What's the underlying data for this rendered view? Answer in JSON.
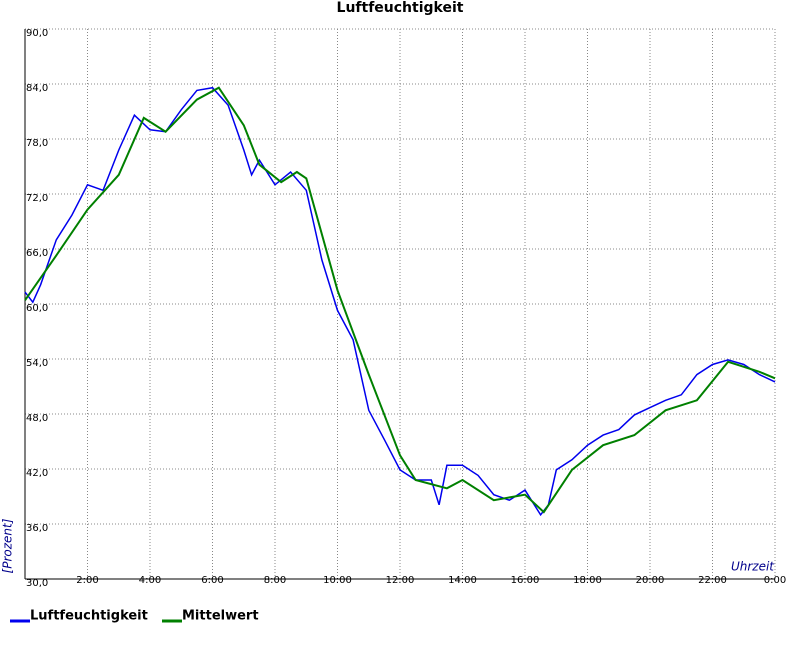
{
  "chart_data": {
    "type": "line",
    "title": "Luftfeuchtigkeit",
    "ylabel": "[Prozent]",
    "xlabel": "Uhrzeit",
    "xlim": [
      0,
      24
    ],
    "ylim": [
      30,
      90
    ],
    "xticks": [
      {
        "value": 2,
        "label": "2:00"
      },
      {
        "value": 4,
        "label": "4:00"
      },
      {
        "value": 6,
        "label": "6:00"
      },
      {
        "value": 8,
        "label": "8:00"
      },
      {
        "value": 10,
        "label": "10:00"
      },
      {
        "value": 12,
        "label": "12:00"
      },
      {
        "value": 14,
        "label": "14:00"
      },
      {
        "value": 16,
        "label": "16:00"
      },
      {
        "value": 18,
        "label": "18:00"
      },
      {
        "value": 20,
        "label": "20:00"
      },
      {
        "value": 22,
        "label": "22:00"
      },
      {
        "value": 24,
        "label": "0:00"
      }
    ],
    "yticks": [
      {
        "value": 30,
        "label": "30,0"
      },
      {
        "value": 36,
        "label": "36,0"
      },
      {
        "value": 42,
        "label": "42,0"
      },
      {
        "value": 48,
        "label": "48,0"
      },
      {
        "value": 54,
        "label": "54,0"
      },
      {
        "value": 60,
        "label": "60,0"
      },
      {
        "value": 66,
        "label": "66,0"
      },
      {
        "value": 72,
        "label": "72,0"
      },
      {
        "value": 78,
        "label": "78,0"
      },
      {
        "value": 84,
        "label": "84,0"
      },
      {
        "value": 90,
        "label": "90,0"
      }
    ],
    "grid": true,
    "series": [
      {
        "name": "Luftfeuchtigkeit",
        "color": "#0000ee",
        "x": [
          0,
          0.25,
          0.5,
          1,
          1.5,
          2,
          2.5,
          3,
          3.5,
          4,
          4.5,
          5,
          5.5,
          6,
          6.5,
          7,
          7.25,
          7.5,
          8,
          8.5,
          9,
          9.5,
          10,
          10.5,
          11,
          11.5,
          12,
          12.5,
          13,
          13.25,
          13.5,
          14,
          14.5,
          15,
          15.5,
          16,
          16.5,
          16.75,
          17,
          17.5,
          18,
          18.5,
          19,
          19.5,
          20,
          20.5,
          21,
          21.5,
          22,
          22.5,
          23,
          23.5,
          24
        ],
        "values": [
          61.3,
          60.2,
          62.1,
          67.0,
          69.7,
          73.0,
          72.4,
          76.8,
          80.6,
          79.0,
          78.8,
          81.2,
          83.3,
          83.6,
          81.7,
          76.8,
          74.1,
          75.7,
          73.0,
          74.4,
          72.4,
          64.8,
          59.3,
          56.1,
          48.4,
          45.2,
          41.9,
          40.8,
          40.8,
          38.1,
          42.4,
          42.4,
          41.3,
          39.2,
          38.6,
          39.7,
          37.0,
          38.1,
          41.9,
          43.0,
          44.6,
          45.7,
          46.3,
          47.9,
          48.7,
          49.5,
          50.1,
          52.3,
          53.4,
          53.9,
          53.4,
          52.3,
          51.5
        ]
      },
      {
        "name": "Mittelwert",
        "color": "#008000",
        "x": [
          0,
          1,
          2,
          3,
          3.8,
          4.5,
          5.5,
          6.2,
          7,
          7.5,
          8.2,
          8.7,
          9,
          10,
          11,
          12,
          12.5,
          13.5,
          14,
          15,
          16,
          16.6,
          17.5,
          18.5,
          19.5,
          20.5,
          21.5,
          22.5,
          23.5,
          24
        ],
        "values": [
          60.4,
          65.3,
          70.3,
          74.1,
          80.3,
          78.8,
          82.3,
          83.6,
          79.5,
          75.2,
          73.3,
          74.4,
          73.7,
          61.5,
          52.3,
          43.5,
          40.8,
          39.9,
          40.8,
          38.6,
          39.2,
          37.3,
          41.9,
          44.6,
          45.7,
          48.4,
          49.5,
          53.7,
          52.6,
          51.9
        ]
      }
    ]
  }
}
